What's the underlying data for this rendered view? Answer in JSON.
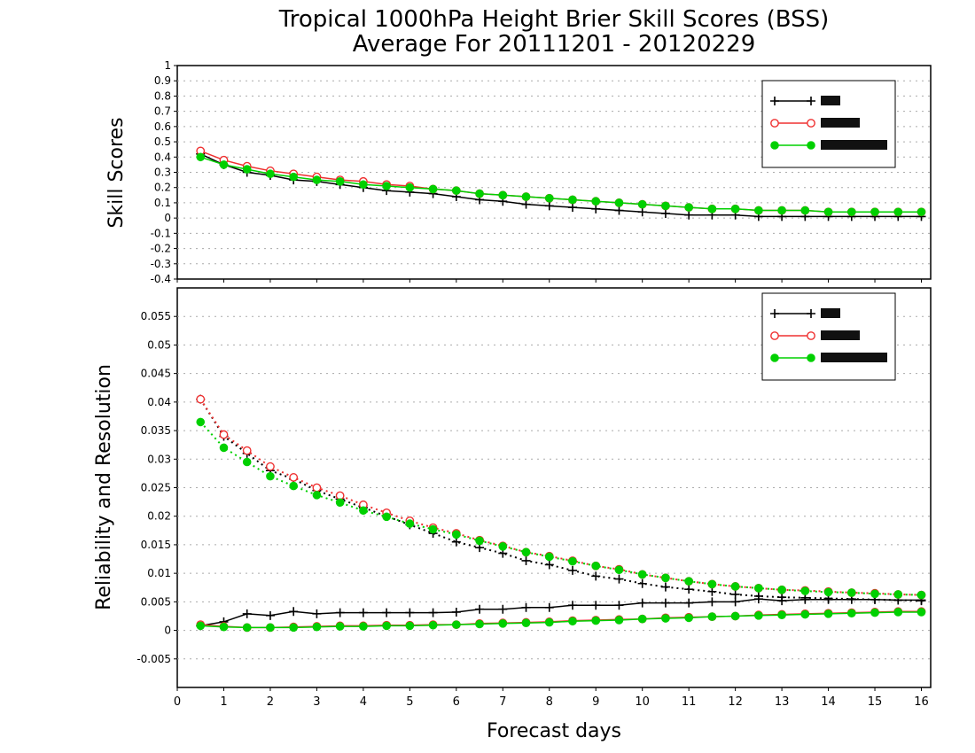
{
  "title_line1": "Tropical 1000hPa Height Brier Skill Scores (BSS)",
  "title_line2": "Average For 20111201 - 20120229",
  "colors": {
    "series1": "#000000",
    "series2": "#ef3030",
    "series3": "#00d000"
  },
  "chart_data": [
    {
      "type": "line",
      "ylabel": "Skill Scores",
      "ylim": [
        -0.4,
        1
      ],
      "yticks": [
        "1",
        "0.9",
        "0.8",
        "0.7",
        "0.6",
        "0.5",
        "0.4",
        "0.3",
        "0.2",
        "0.1",
        "0",
        "-0.1",
        "-0.2",
        "-0.3",
        "-0.4"
      ],
      "grid": true,
      "legend_placement": "top-right",
      "x": [
        0.5,
        1,
        1.5,
        2,
        2.5,
        3,
        3.5,
        4,
        4.5,
        5,
        5.5,
        6,
        6.5,
        7,
        7.5,
        8,
        8.5,
        9,
        9.5,
        10,
        10.5,
        11,
        11.5,
        12,
        12.5,
        13,
        13.5,
        14,
        14.5,
        15,
        15.5,
        16
      ],
      "series": [
        {
          "name": "",
          "marker": "plus",
          "line": "solid",
          "color": "#000000",
          "values": [
            0.42,
            0.35,
            0.3,
            0.28,
            0.25,
            0.24,
            0.22,
            0.2,
            0.18,
            0.17,
            0.16,
            0.14,
            0.12,
            0.11,
            0.09,
            0.08,
            0.07,
            0.06,
            0.05,
            0.04,
            0.03,
            0.02,
            0.02,
            0.02,
            0.01,
            0.01,
            0.01,
            0.01,
            0.01,
            0.01,
            0.01,
            0.01
          ]
        },
        {
          "name": "",
          "marker": "open-circle",
          "line": "solid",
          "color": "#ef3030",
          "values": [
            0.44,
            0.38,
            0.34,
            0.31,
            0.29,
            0.27,
            0.25,
            0.24,
            0.22,
            0.21,
            0.19,
            0.18,
            0.16,
            0.15,
            0.14,
            0.13,
            0.12,
            0.11,
            0.1,
            0.09,
            0.08,
            0.07,
            0.06,
            0.06,
            0.05,
            0.05,
            0.05,
            0.04,
            0.04,
            0.04,
            0.04,
            0.04
          ]
        },
        {
          "name": "",
          "marker": "filled-circle",
          "line": "solid",
          "color": "#00d000",
          "values": [
            0.4,
            0.35,
            0.32,
            0.29,
            0.27,
            0.25,
            0.24,
            0.22,
            0.21,
            0.2,
            0.19,
            0.18,
            0.16,
            0.15,
            0.14,
            0.13,
            0.12,
            0.11,
            0.1,
            0.09,
            0.08,
            0.07,
            0.06,
            0.06,
            0.05,
            0.05,
            0.05,
            0.04,
            0.04,
            0.04,
            0.04,
            0.04
          ]
        }
      ]
    },
    {
      "type": "line",
      "ylabel": "Reliability and Resolution",
      "xlabel": "Forecast days",
      "ylim": [
        -0.01,
        0.06
      ],
      "yticks": [
        "0.055",
        "0.05",
        "0.045",
        "0.04",
        "0.035",
        "0.03",
        "0.025",
        "0.02",
        "0.015",
        "0.01",
        "0.005",
        "0",
        "-0.005"
      ],
      "xlim": [
        0,
        16.2
      ],
      "xticks": [
        "0",
        "1",
        "2",
        "3",
        "4",
        "5",
        "6",
        "7",
        "8",
        "9",
        "10",
        "11",
        "12",
        "13",
        "14",
        "15",
        "16"
      ],
      "grid": true,
      "legend_placement": "top-right",
      "x": [
        0.5,
        1,
        1.5,
        2,
        2.5,
        3,
        3.5,
        4,
        4.5,
        5,
        5.5,
        6,
        6.5,
        7,
        7.5,
        8,
        8.5,
        9,
        9.5,
        10,
        10.5,
        11,
        11.5,
        12,
        12.5,
        13,
        13.5,
        14,
        14.5,
        15,
        15.5,
        16
      ],
      "series": [
        {
          "name": "",
          "marker": "plus",
          "line": "solid",
          "color": "#000000",
          "role": "reliability",
          "values": [
            0.0008,
            0.0015,
            0.0029,
            0.0026,
            0.0033,
            0.0029,
            0.0031,
            0.0031,
            0.0031,
            0.0031,
            0.0031,
            0.0032,
            0.0037,
            0.0037,
            0.004,
            0.004,
            0.0044,
            0.0044,
            0.0044,
            0.0048,
            0.0048,
            0.0048,
            0.005,
            0.005,
            0.0055,
            0.0052,
            0.0054,
            0.0054,
            0.0054,
            0.0054,
            0.0053,
            0.0053
          ]
        },
        {
          "name": "",
          "marker": "plus",
          "line": "dotted",
          "color": "#000000",
          "role": "resolution",
          "values": [
            0.0405,
            0.034,
            0.031,
            0.028,
            0.0265,
            0.0245,
            0.023,
            0.0215,
            0.02,
            0.0185,
            0.017,
            0.0155,
            0.0145,
            0.0135,
            0.0122,
            0.0115,
            0.0105,
            0.0095,
            0.009,
            0.0082,
            0.0076,
            0.0072,
            0.0068,
            0.0063,
            0.006,
            0.0058,
            0.0057,
            0.0056,
            0.0055,
            0.0054,
            0.0053,
            0.0052
          ]
        },
        {
          "name": "",
          "marker": "open-circle",
          "line": "solid",
          "color": "#ef3030",
          "role": "reliability",
          "values": [
            0.001,
            0.0007,
            0.0005,
            0.0005,
            0.0006,
            0.0007,
            0.0008,
            0.0008,
            0.0009,
            0.0009,
            0.001,
            0.001,
            0.0012,
            0.0013,
            0.0014,
            0.0015,
            0.0017,
            0.0018,
            0.0019,
            0.002,
            0.0022,
            0.0023,
            0.0024,
            0.0025,
            0.0027,
            0.0028,
            0.0029,
            0.003,
            0.0031,
            0.0032,
            0.0033,
            0.0033
          ]
        },
        {
          "name": "",
          "marker": "open-circle",
          "line": "dotted",
          "color": "#ef3030",
          "role": "resolution",
          "values": [
            0.0405,
            0.0343,
            0.0315,
            0.0287,
            0.0268,
            0.025,
            0.0236,
            0.022,
            0.0206,
            0.0192,
            0.018,
            0.017,
            0.0158,
            0.0148,
            0.0137,
            0.013,
            0.0122,
            0.0113,
            0.0107,
            0.0098,
            0.0092,
            0.0086,
            0.0081,
            0.0077,
            0.0074,
            0.0071,
            0.007,
            0.0068,
            0.0066,
            0.0065,
            0.0063,
            0.0062
          ]
        },
        {
          "name": "",
          "marker": "filled-circle",
          "line": "solid",
          "color": "#00d000",
          "role": "reliability",
          "values": [
            0.0008,
            0.0006,
            0.0005,
            0.0005,
            0.0005,
            0.0006,
            0.0007,
            0.0007,
            0.0008,
            0.0008,
            0.0009,
            0.001,
            0.0011,
            0.0012,
            0.0013,
            0.0014,
            0.0016,
            0.0017,
            0.0018,
            0.002,
            0.0021,
            0.0022,
            0.0024,
            0.0025,
            0.0026,
            0.0027,
            0.0028,
            0.0029,
            0.003,
            0.0031,
            0.0032,
            0.0032
          ]
        },
        {
          "name": "",
          "marker": "filled-circle",
          "line": "dotted",
          "color": "#00d000",
          "role": "resolution",
          "values": [
            0.0365,
            0.032,
            0.0295,
            0.027,
            0.0253,
            0.0237,
            0.0224,
            0.021,
            0.0199,
            0.0187,
            0.0177,
            0.0168,
            0.0157,
            0.0147,
            0.0137,
            0.0129,
            0.0121,
            0.0113,
            0.0106,
            0.0098,
            0.0092,
            0.0086,
            0.0081,
            0.0077,
            0.0074,
            0.0071,
            0.0069,
            0.0067,
            0.0066,
            0.0064,
            0.0063,
            0.0062
          ]
        }
      ]
    }
  ]
}
